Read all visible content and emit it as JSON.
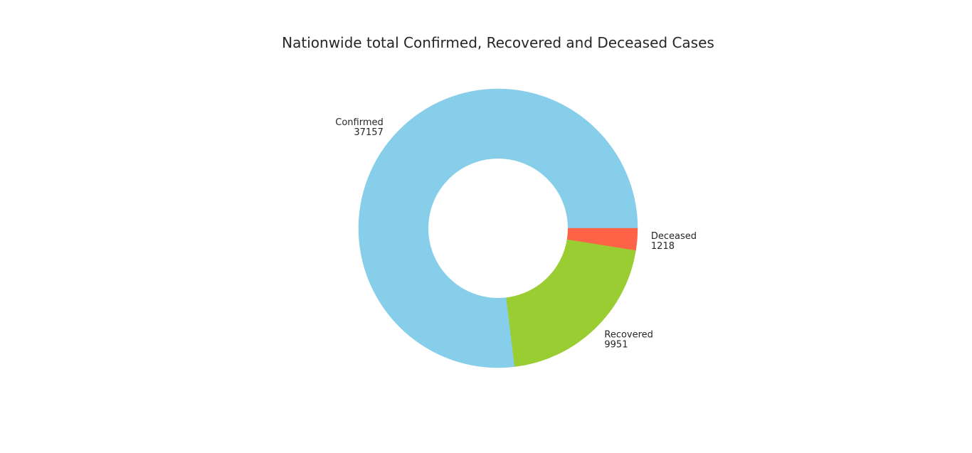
{
  "chart_data": {
    "type": "pie",
    "variant": "donut",
    "title": "Nationwide total Confirmed, Recovered and Deceased Cases",
    "categories": [
      "Confirmed",
      "Recovered",
      "Deceased"
    ],
    "values": [
      37157,
      9951,
      1218
    ],
    "colors": [
      "#87CEEB",
      "#9ACD32",
      "#FF6347"
    ],
    "start_angle_deg": 0,
    "direction": "counterclockwise",
    "labels_show_values": true,
    "hole_ratio": 0.5
  }
}
